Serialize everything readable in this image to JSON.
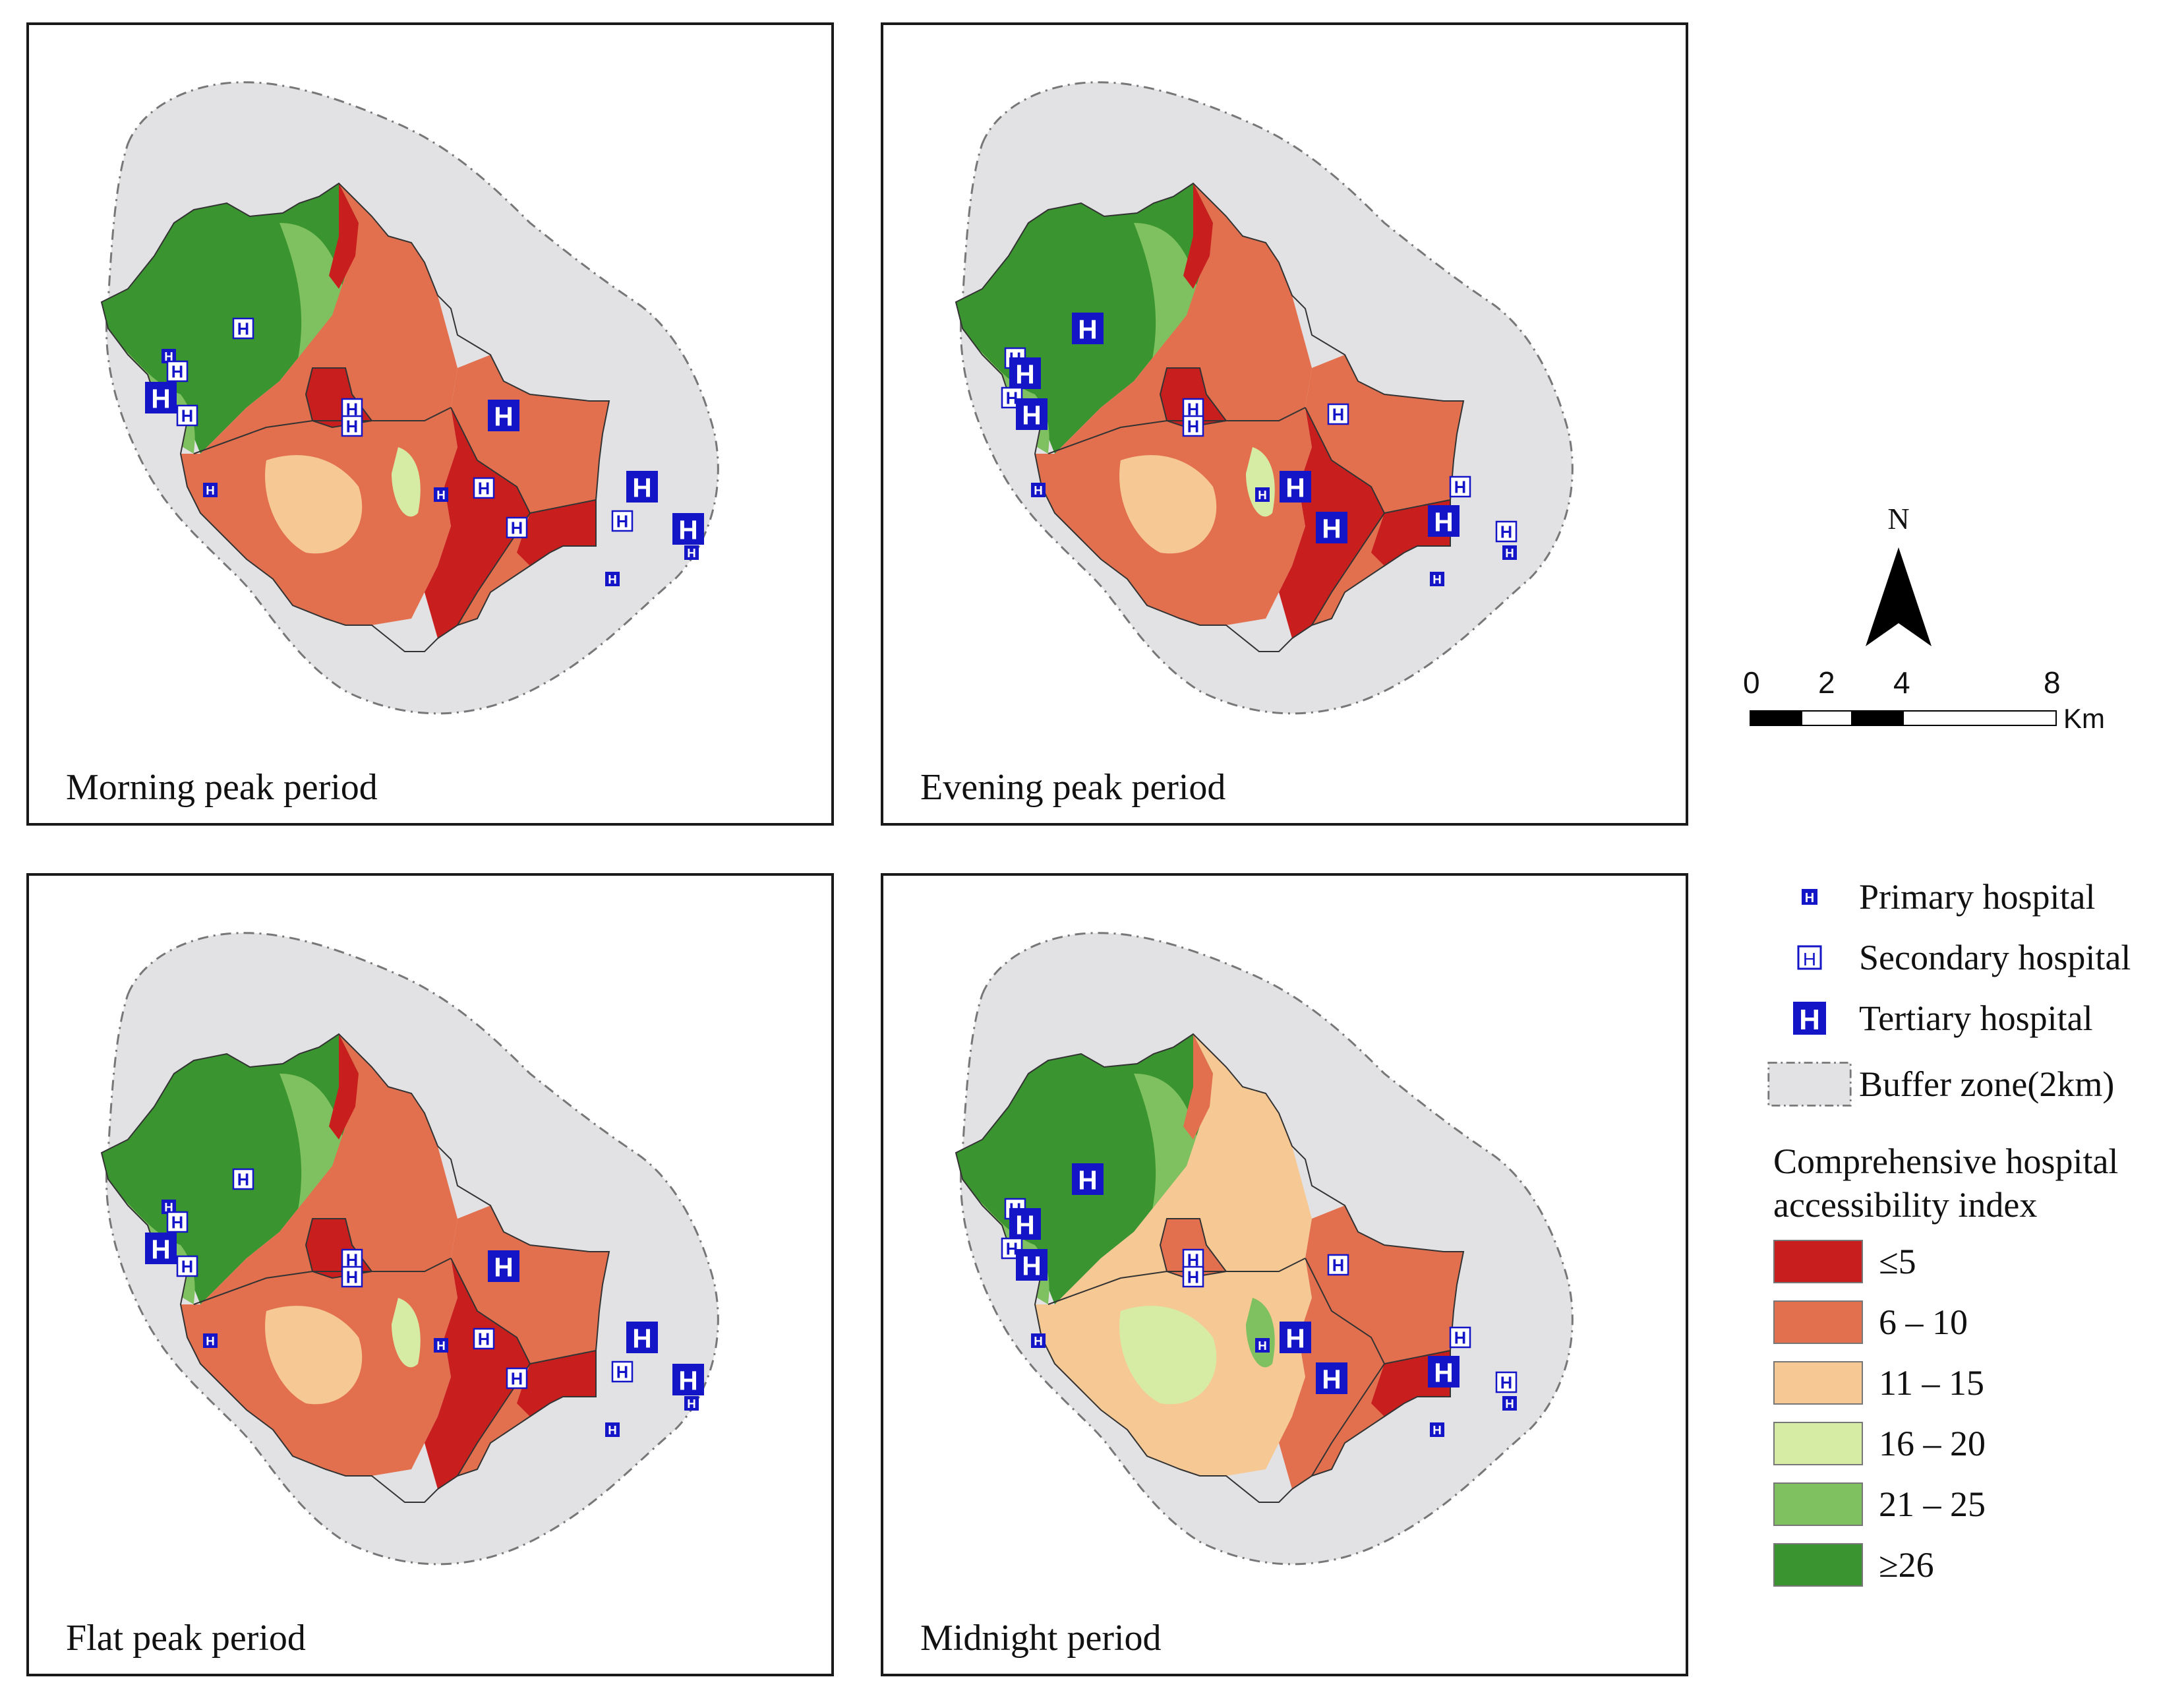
{
  "panels": [
    {
      "id": "morning",
      "label": "Morning peak period"
    },
    {
      "id": "evening",
      "label": "Evening peak period"
    },
    {
      "id": "flat",
      "label": "Flat peak period"
    },
    {
      "id": "midnight",
      "label": "Midnight period"
    }
  ],
  "north_arrow": {
    "letter": "N"
  },
  "scale_bar": {
    "ticks": [
      "0",
      "2",
      "4",
      "8"
    ],
    "unit": "Km"
  },
  "legend": {
    "hospitals": [
      {
        "name": "Primary hospital",
        "icon": "primary-hospital-icon"
      },
      {
        "name": "Secondary hospital",
        "icon": "secondary-hospital-icon"
      },
      {
        "name": "Tertiary hospital",
        "icon": "tertiary-hospital-icon"
      }
    ],
    "buffer": "Buffer zone(2km)",
    "index_title_line1": "Comprehensive hospital",
    "index_title_line2": "accessibility index",
    "classes": [
      {
        "label": "≤5",
        "color": "#c81e1e"
      },
      {
        "label": "6 – 10",
        "color": "#e2704f"
      },
      {
        "label": "11 – 15",
        "color": "#f6c894"
      },
      {
        "label": "16 – 20",
        "color": "#d6eca5"
      },
      {
        "label": "21 – 25",
        "color": "#7fc160"
      },
      {
        "label": "≥26",
        "color": "#3a9530"
      }
    ],
    "buffer_color": "#e2e2e4",
    "hospital_color": "#1515c8"
  }
}
